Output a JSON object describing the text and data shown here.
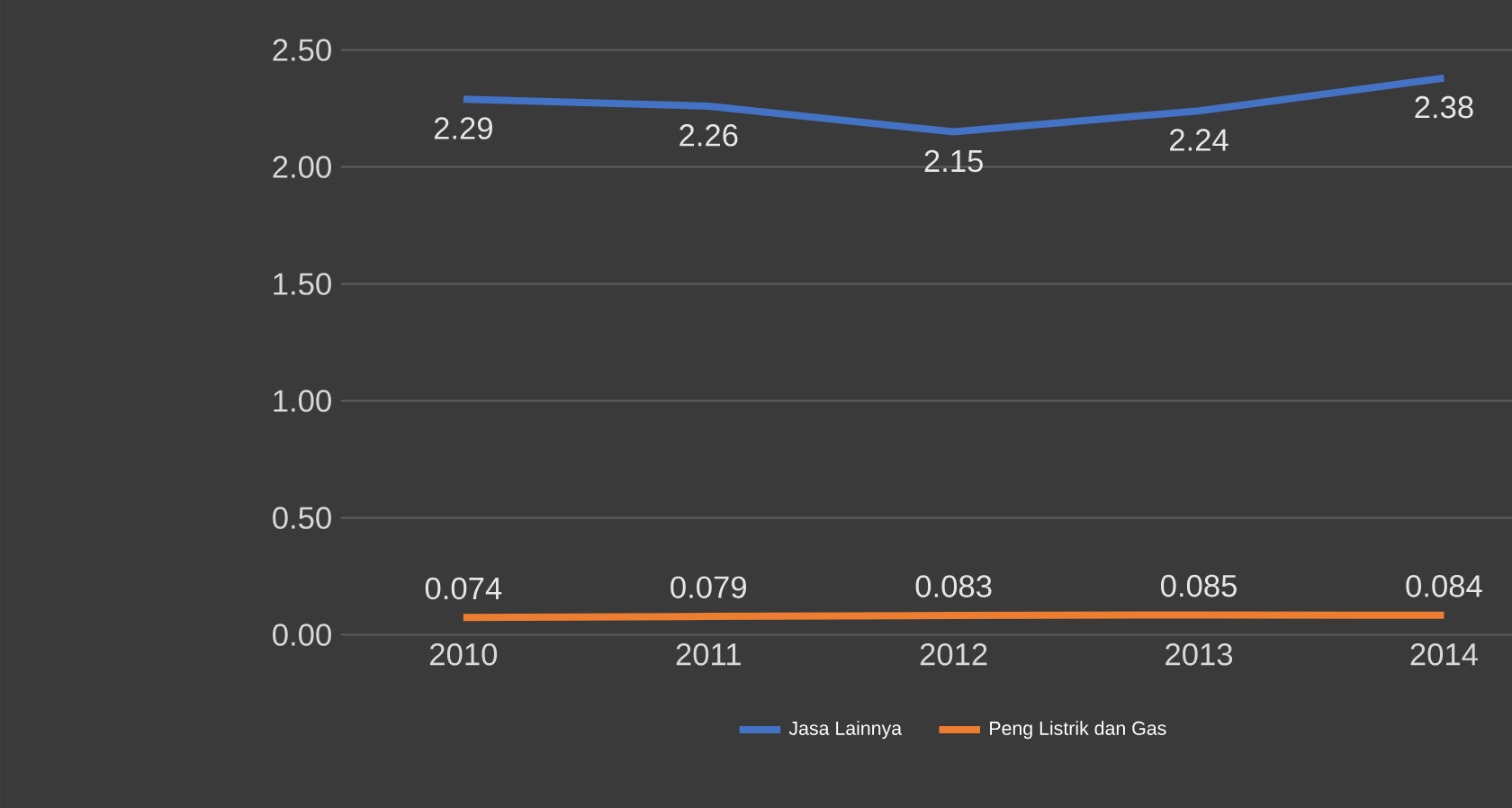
{
  "chart_data": {
    "type": "line",
    "categories": [
      "2010",
      "2011",
      "2012",
      "2013",
      "2014"
    ],
    "series": [
      {
        "name": "Jasa Lainnya",
        "color": "#4472c4",
        "values": [
          2.29,
          2.26,
          2.15,
          2.24,
          2.38
        ],
        "value_labels": [
          "2.29",
          "2.26",
          "2.15",
          "2.24",
          "2.38"
        ]
      },
      {
        "name": "Peng Listrik dan Gas",
        "color": "#ed7d31",
        "values": [
          0.074,
          0.079,
          0.083,
          0.085,
          0.084
        ],
        "value_labels": [
          "0.074",
          "0.079",
          "0.083",
          "0.085",
          "0.084"
        ]
      }
    ],
    "ylim": [
      0,
      2.5
    ],
    "yticks": [
      {
        "value": 0,
        "label": "0.00"
      },
      {
        "value": 0.5,
        "label": "0.50"
      },
      {
        "value": 1,
        "label": "1.00"
      },
      {
        "value": 1.5,
        "label": "1.50"
      },
      {
        "value": 2,
        "label": "2.00"
      },
      {
        "value": 2.5,
        "label": "2.50"
      }
    ],
    "grid": "y",
    "legend": "bottom",
    "marker": "none",
    "line_style": "solid"
  }
}
